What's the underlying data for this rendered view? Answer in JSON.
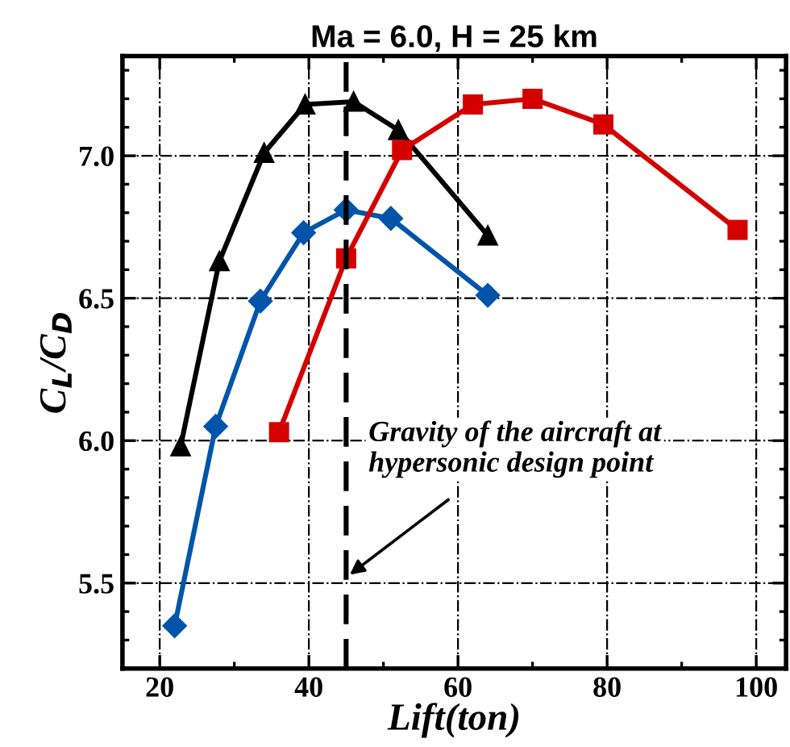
{
  "chart_data": {
    "type": "line",
    "title": "Ma = 6.0, H = 25 km",
    "xlabel": "Lift(ton)",
    "ylabel": "C$_{L}$/C$_{D}$",
    "xlim": [
      15,
      104
    ],
    "ylim": [
      5.2,
      7.35
    ],
    "xticks": [
      20,
      40,
      60,
      80,
      100
    ],
    "yticks": [
      5.5,
      {
        "value": 6,
        "label": "6.0"
      },
      6.5,
      {
        "value": 7,
        "label": "7.0"
      }
    ],
    "grid": true,
    "legend": false,
    "series": [
      {
        "color": "#000000",
        "marker": "triangle",
        "x": [
          22.8,
          28,
          34,
          39.5,
          46,
          52,
          64
        ],
        "values": [
          5.98,
          6.63,
          7.01,
          7.18,
          7.19,
          7.09,
          6.72
        ]
      },
      {
        "color": "#0055aa",
        "marker": "diamond",
        "x": [
          22,
          27.5,
          33.5,
          39.3,
          45,
          51,
          64
        ],
        "values": [
          5.35,
          6.05,
          6.49,
          6.73,
          6.81,
          6.78,
          6.51
        ]
      },
      {
        "color": "#d40000",
        "marker": "square",
        "x": [
          36,
          45,
          52.5,
          62,
          70,
          79.5,
          97.5
        ],
        "values": [
          6.03,
          6.64,
          7.02,
          7.18,
          7.2,
          7.11,
          6.74
        ]
      }
    ],
    "ref_lines": [
      {
        "axis": "x",
        "value": 45,
        "color": "#000000",
        "line_style": "dashed",
        "label": null
      }
    ],
    "annotations": [
      {
        "text": "Gravity of the aircraft at\nhypersonic design point",
        "x": 45,
        "y": 5.52
      }
    ]
  }
}
